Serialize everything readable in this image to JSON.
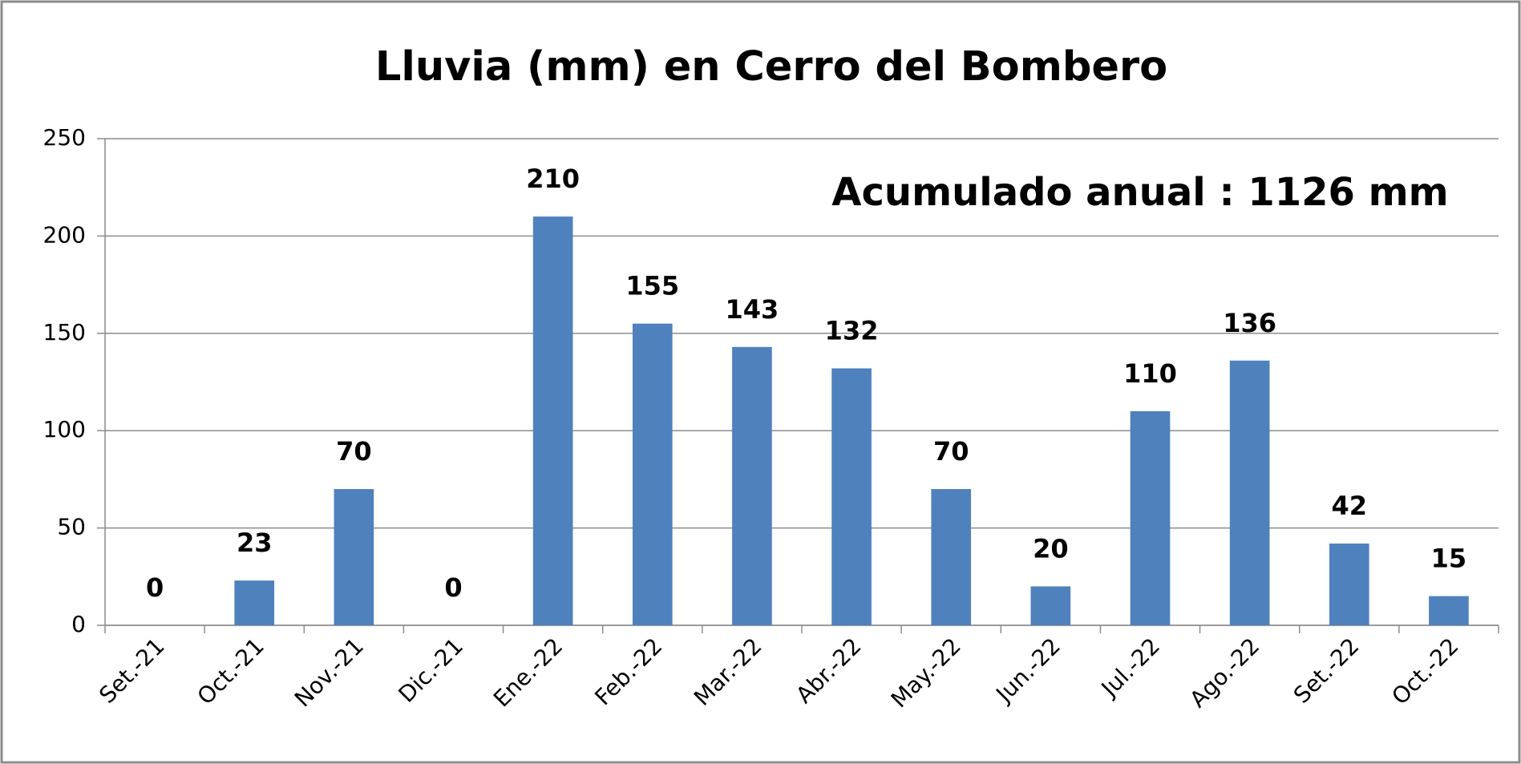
{
  "chart_data": {
    "type": "bar",
    "title": "Lluvia (mm) en Cerro del Bombero",
    "annotation": "Acumulado anual : 1126 mm",
    "categories": [
      "Set.-21",
      "Oct.-21",
      "Nov.-21",
      "Dic.-21",
      "Ene.-22",
      "Feb.-22",
      "Mar.-22",
      "Abr.-22",
      "May.-22",
      "Jun.-22",
      "Jul.-22",
      "Ago.-22",
      "Set.-22",
      "Oct.-22"
    ],
    "values": [
      0,
      23,
      70,
      0,
      210,
      155,
      143,
      132,
      70,
      20,
      110,
      136,
      42,
      15
    ],
    "color": "#4f81bd",
    "ylim": [
      0,
      250
    ],
    "yticks": [
      0,
      50,
      100,
      150,
      200,
      250
    ],
    "grid": true
  }
}
